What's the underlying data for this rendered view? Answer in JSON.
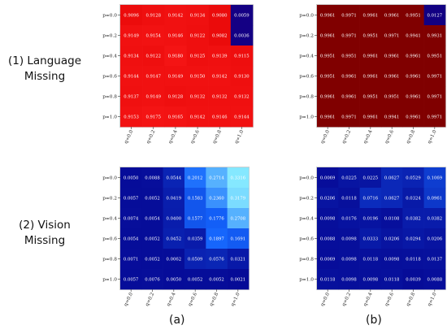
{
  "row_labels": [
    "(1) Language\nMissing",
    "(2) Vision\nMissing"
  ],
  "row_label_lines": [
    [
      "(1) Language",
      "Missing"
    ],
    [
      "(2) Vision",
      "Missing"
    ]
  ],
  "panel_captions": [
    "(a)",
    "(b)"
  ],
  "chart_data": [
    {
      "type": "heatmap",
      "title": "",
      "x_ticks": [
        "q=0.0",
        "q=0.2",
        "q=0.4",
        "q=0.6",
        "q=0.8",
        "q=1.0"
      ],
      "y_ticks": [
        "p=0.0",
        "p=0.2",
        "p=0.4",
        "p=0.6",
        "p=0.8",
        "p=1.0"
      ],
      "colormap": "red",
      "values": [
        [
          "0.9096",
          "0.9128",
          "0.9142",
          "0.9134",
          "0.9080",
          "0.0059"
        ],
        [
          "0.9149",
          "0.9154",
          "0.9146",
          "0.9122",
          "0.9082",
          "0.0036"
        ],
        [
          "0.9134",
          "0.9122",
          "0.9180",
          "0.9125",
          "0.9139",
          "0.9115"
        ],
        [
          "0.9144",
          "0.9147",
          "0.9149",
          "0.9150",
          "0.9142",
          "0.9130"
        ],
        [
          "0.9137",
          "0.9149",
          "0.9128",
          "0.9132",
          "0.9132",
          "0.9132"
        ],
        [
          "0.9153",
          "0.9175",
          "0.9165",
          "0.9142",
          "0.9146",
          "0.9144"
        ]
      ]
    },
    {
      "type": "heatmap",
      "title": "",
      "x_ticks": [
        "q=0.0",
        "q=0.2",
        "q=0.4",
        "q=0.6",
        "q=0.8",
        "q=1.0"
      ],
      "y_ticks": [
        "p=0.0",
        "p=0.2",
        "p=0.4",
        "p=0.6",
        "p=0.8",
        "p=1.0"
      ],
      "colormap": "darkred",
      "values": [
        [
          "0.9961",
          "0.9971",
          "0.9961",
          "0.9961",
          "0.9951",
          "0.0127"
        ],
        [
          "0.9961",
          "0.9971",
          "0.9951",
          "0.9971",
          "0.9941",
          "0.9931"
        ],
        [
          "0.9951",
          "0.9951",
          "0.9961",
          "0.9961",
          "0.9961",
          "0.9951"
        ],
        [
          "0.9951",
          "0.9961",
          "0.9961",
          "0.9961",
          "0.9961",
          "0.9971"
        ],
        [
          "0.9961",
          "0.9961",
          "0.9951",
          "0.9951",
          "0.9961",
          "0.9971"
        ],
        [
          "0.9961",
          "0.9971",
          "0.9961",
          "0.9941",
          "0.9961",
          "0.9971"
        ]
      ]
    },
    {
      "type": "heatmap",
      "title": "",
      "x_ticks": [
        "q=0.0",
        "q=0.2",
        "q=0.4",
        "q=0.6",
        "q=0.8",
        "q=1.0"
      ],
      "y_ticks": [
        "p=0.0",
        "p=0.2",
        "p=0.4",
        "p=0.6",
        "p=0.8",
        "p=1.0"
      ],
      "colormap": "blue",
      "values": [
        [
          "0.0050",
          "0.0088",
          "0.0544",
          "0.2012",
          "0.2714",
          "0.3316"
        ],
        [
          "0.0057",
          "0.0052",
          "0.0419",
          "0.1583",
          "0.2360",
          "0.3179"
        ],
        [
          "0.0074",
          "0.0054",
          "0.0400",
          "0.1577",
          "0.1776",
          "0.2708"
        ],
        [
          "0.0054",
          "0.0052",
          "0.0452",
          "0.0359",
          "0.1897",
          "0.1691"
        ],
        [
          "0.0071",
          "0.0052",
          "0.0062",
          "0.0509",
          "0.0576",
          "0.0321"
        ],
        [
          "0.0057",
          "0.0076",
          "0.0050",
          "0.0052",
          "0.0052",
          "0.0021"
        ]
      ]
    },
    {
      "type": "heatmap",
      "title": "",
      "x_ticks": [
        "q=0.0",
        "q=0.2",
        "q=0.4",
        "q=0.6",
        "q=0.8",
        "q=1.0"
      ],
      "y_ticks": [
        "p=0.0",
        "p=0.2",
        "p=0.4",
        "p=0.6",
        "p=0.8",
        "p=1.0"
      ],
      "colormap": "blue",
      "values": [
        [
          "0.0069",
          "0.0225",
          "0.0225",
          "0.0627",
          "0.0529",
          "0.1069"
        ],
        [
          "0.0206",
          "0.0118",
          "0.0716",
          "0.0627",
          "0.0324",
          "0.0961"
        ],
        [
          "0.0098",
          "0.0176",
          "0.0196",
          "0.0108",
          "0.0382",
          "0.0382"
        ],
        [
          "0.0088",
          "0.0098",
          "0.0333",
          "0.0206",
          "0.0294",
          "0.0206"
        ],
        [
          "0.0069",
          "0.0098",
          "0.0118",
          "0.0098",
          "0.0118",
          "0.0137"
        ],
        [
          "0.0118",
          "0.0098",
          "0.0098",
          "0.0118",
          "0.0039",
          "0.0088"
        ]
      ]
    }
  ]
}
